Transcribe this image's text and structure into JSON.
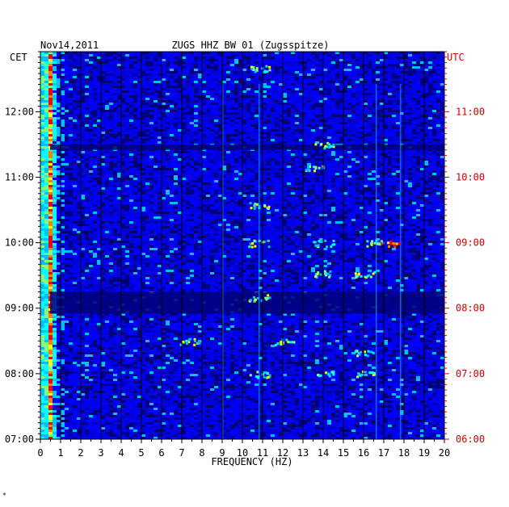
{
  "chart_data": {
    "type": "heatmap",
    "title_left": "Nov14,2011",
    "title": "ZUGS HHZ BW 01 (Zugsspitze)",
    "xlabel": "FREQUENCY (HZ)",
    "left_axis_label": "CET",
    "right_axis_label": "UTC",
    "xlim": [
      0,
      20
    ],
    "x_ticks": [
      "0",
      "1",
      "2",
      "3",
      "4",
      "5",
      "6",
      "7",
      "8",
      "9",
      "10",
      "11",
      "12",
      "13",
      "14",
      "15",
      "16",
      "17",
      "18",
      "19",
      "20"
    ],
    "left_ticks": [
      "12:00",
      "11:00",
      "10:00",
      "09:00",
      "08:00",
      "07:00"
    ],
    "right_ticks": [
      "11:00",
      "10:00",
      "09:00",
      "08:00",
      "07:00",
      "06:00"
    ],
    "time_range_utc": [
      "06:00",
      "11:55"
    ],
    "colormap": [
      "#00007f",
      "#0000ff",
      "#00bfff",
      "#00ffff",
      "#80ff80",
      "#ffff00",
      "#ff8000",
      "#ff0000",
      "#7f0000"
    ],
    "dark_bands_utc": [
      "07:55-08:15",
      "10:25-10:30"
    ],
    "hot_spots": [
      {
        "freq_hz": 0.3,
        "time_utc": "all",
        "level": "high"
      },
      {
        "freq_hz": 17.2,
        "time_utc": "09:00",
        "level": "high"
      },
      {
        "freq_hz": 14.0,
        "time_utc": "08:32",
        "level": "medium"
      },
      {
        "freq_hz": 10.8,
        "time_utc": "11:40",
        "level": "medium"
      },
      {
        "freq_hz": 13.5,
        "time_utc": "10:08",
        "level": "medium"
      },
      {
        "freq_hz": 14.0,
        "time_utc": "10:30",
        "level": "medium"
      },
      {
        "freq_hz": 16.0,
        "time_utc": "08:32",
        "level": "medium"
      },
      {
        "freq_hz": 14.0,
        "time_utc": "09:00",
        "level": "medium"
      },
      {
        "freq_hz": 10.8,
        "time_utc": "09:00",
        "level": "medium"
      },
      {
        "freq_hz": 16.0,
        "time_utc": "07:00",
        "level": "medium"
      },
      {
        "freq_hz": 14.0,
        "time_utc": "07:00",
        "level": "medium"
      },
      {
        "freq_hz": 10.8,
        "time_utc": "07:00",
        "level": "medium"
      },
      {
        "freq_hz": 7.4,
        "time_utc": "07:30",
        "level": "medium"
      },
      {
        "freq_hz": 12.0,
        "time_utc": "07:30",
        "level": "medium"
      },
      {
        "freq_hz": 16.0,
        "time_utc": "07:20",
        "level": "medium"
      },
      {
        "freq_hz": 16.5,
        "time_utc": "09:00",
        "level": "medium"
      },
      {
        "freq_hz": 10.8,
        "time_utc": "08:10",
        "level": "medium"
      },
      {
        "freq_hz": 10.8,
        "time_utc": "09:35",
        "level": "medium"
      }
    ]
  },
  "footnote": "*"
}
